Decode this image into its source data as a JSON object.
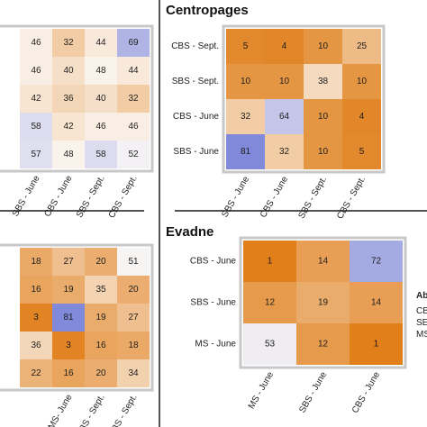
{
  "chart_data": [
    {
      "type": "heatmap",
      "title": "",
      "row_labels": [
        "",
        "",
        "",
        "",
        ""
      ],
      "col_labels": [
        "",
        "SBS - June",
        "CBS - June",
        "SBS - Sept.",
        "CBS - Sept."
      ],
      "values": [
        [
          null,
          46,
          32,
          44,
          69
        ],
        [
          null,
          46,
          40,
          48,
          44
        ],
        [
          null,
          42,
          36,
          40,
          32
        ],
        [
          null,
          58,
          42,
          46,
          46
        ],
        [
          null,
          57,
          48,
          58,
          52
        ]
      ]
    },
    {
      "type": "heatmap",
      "title": "Centropages",
      "row_labels": [
        "CBS - Sept.",
        "SBS - Sept.",
        "CBS - June",
        "SBS - June"
      ],
      "col_labels": [
        "SBS - June",
        "CBS - June",
        "SBS - Sept.",
        "CBS - Sept."
      ],
      "values": [
        [
          5,
          4,
          10,
          25
        ],
        [
          10,
          10,
          38,
          10
        ],
        [
          32,
          64,
          10,
          4
        ],
        [
          81,
          32,
          10,
          5
        ]
      ]
    },
    {
      "type": "heatmap",
      "title": "",
      "row_labels": [
        "",
        "",
        "",
        "",
        ""
      ],
      "col_labels": [
        "",
        "",
        "MS- June",
        "SBS - Sept.",
        "CBS - Sept."
      ],
      "values": [
        [
          null,
          18,
          27,
          20,
          51
        ],
        [
          null,
          16,
          19,
          35,
          20
        ],
        [
          null,
          3,
          81,
          19,
          27
        ],
        [
          null,
          36,
          3,
          16,
          18
        ],
        [
          null,
          22,
          16,
          20,
          34
        ]
      ]
    },
    {
      "type": "heatmap",
      "title": "Evadne",
      "row_labels": [
        "CBS - June",
        "SBS - June",
        "MS - June"
      ],
      "col_labels": [
        "MS - June",
        "SBS - June",
        "CBS - June"
      ],
      "values": [
        [
          1,
          14,
          72
        ],
        [
          12,
          19,
          14
        ],
        [
          53,
          12,
          1
        ]
      ]
    }
  ],
  "colors": {
    "low": "#e07d17",
    "mid": "#fbf8f5",
    "high": "#7d86d9"
  },
  "abbreviations": {
    "heading": "Ab",
    "lines": [
      "CB",
      "SE",
      "MS"
    ]
  }
}
